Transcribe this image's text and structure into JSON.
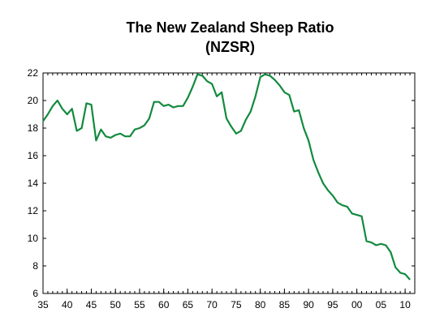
{
  "chart_data": {
    "type": "line",
    "title": "The New Zealand Sheep Ratio",
    "subtitle": "(NZSR)",
    "xlabel": "",
    "ylabel": "",
    "xlim": [
      1935,
      2012
    ],
    "ylim": [
      6,
      22
    ],
    "yticks": [
      6,
      8,
      10,
      12,
      14,
      16,
      18,
      20,
      22
    ],
    "xticks": [
      {
        "year": 1935,
        "label": "35"
      },
      {
        "year": 1940,
        "label": "40"
      },
      {
        "year": 1945,
        "label": "45"
      },
      {
        "year": 1950,
        "label": "50"
      },
      {
        "year": 1955,
        "label": "55"
      },
      {
        "year": 1960,
        "label": "60"
      },
      {
        "year": 1965,
        "label": "65"
      },
      {
        "year": 1970,
        "label": "70"
      },
      {
        "year": 1975,
        "label": "75"
      },
      {
        "year": 1980,
        "label": "80"
      },
      {
        "year": 1985,
        "label": "85"
      },
      {
        "year": 1990,
        "label": "90"
      },
      {
        "year": 1995,
        "label": "95"
      },
      {
        "year": 2000,
        "label": "00"
      },
      {
        "year": 2005,
        "label": "05"
      },
      {
        "year": 2010,
        "label": "10"
      }
    ],
    "grid": false,
    "line_color": "#128a3e",
    "series": [
      {
        "x": [
          1935,
          1936,
          1937,
          1938,
          1939,
          1940,
          1941,
          1942,
          1943,
          1944,
          1945,
          1946,
          1947,
          1948,
          1949,
          1950,
          1951,
          1952,
          1953,
          1954,
          1955,
          1956,
          1957,
          1958,
          1959,
          1960,
          1961,
          1962,
          1963,
          1964,
          1965,
          1966,
          1967,
          1968,
          1969,
          1970,
          1971,
          1972,
          1973,
          1974,
          1975,
          1976,
          1977,
          1978,
          1979,
          1980,
          1981,
          1982,
          1983,
          1984,
          1985,
          1986,
          1987,
          1988,
          1989,
          1990,
          1991,
          1992,
          1993,
          1994,
          1995,
          1996,
          1997,
          1998,
          1999,
          2000,
          2001,
          2002,
          2003,
          2004,
          2005,
          2006,
          2007,
          2008,
          2009,
          2010,
          2011
        ],
        "y": [
          18.5,
          19.0,
          19.6,
          20.0,
          19.4,
          19.0,
          19.4,
          17.8,
          18.0,
          19.8,
          19.7,
          17.1,
          17.9,
          17.4,
          17.3,
          17.5,
          17.6,
          17.4,
          17.4,
          17.9,
          18.0,
          18.2,
          18.7,
          19.9,
          19.9,
          19.6,
          19.7,
          19.5,
          19.6,
          19.6,
          20.2,
          21.0,
          21.9,
          21.8,
          21.4,
          21.2,
          20.3,
          20.6,
          18.7,
          18.1,
          17.6,
          17.8,
          18.6,
          19.2,
          20.3,
          21.7,
          21.9,
          21.8,
          21.5,
          21.1,
          20.6,
          20.4,
          19.2,
          19.3,
          18.0,
          17.1,
          15.7,
          14.8,
          14.0,
          13.5,
          13.1,
          12.6,
          12.4,
          12.3,
          11.8,
          11.7,
          11.6,
          9.8,
          9.7,
          9.5,
          9.6,
          9.5,
          9.0,
          7.9,
          7.5,
          7.4,
          7.0
        ]
      }
    ]
  }
}
